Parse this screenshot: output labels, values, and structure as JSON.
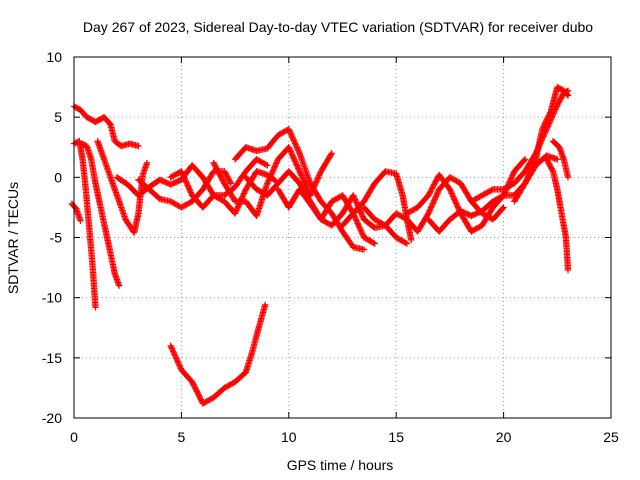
{
  "chart_data": {
    "type": "scatter",
    "title": "Day 267 of 2023, Sidereal Day-to-day VTEC variation (SDTVAR) for receiver dubo",
    "xlabel": "GPS time / hours",
    "ylabel": "SDTVAR / TECUs",
    "xlim": [
      0,
      25
    ],
    "ylim": [
      -20,
      10
    ],
    "xticks": [
      0,
      5,
      10,
      15,
      20,
      25
    ],
    "yticks": [
      -20,
      -15,
      -10,
      -5,
      0,
      5,
      10
    ],
    "xtick_labels": [
      "0",
      "5",
      "10",
      "15",
      "20",
      "25"
    ],
    "ytick_labels": [
      "-20",
      "-15",
      "-10",
      "-5",
      "0",
      "5",
      "10"
    ],
    "grid": true,
    "marker": "plus",
    "color": "#ff0000",
    "series": [
      {
        "name": "arc-1",
        "points": [
          [
            0.0,
            5.9
          ],
          [
            0.3,
            5.6
          ],
          [
            0.6,
            5.0
          ],
          [
            1.0,
            4.6
          ],
          [
            1.4,
            5.0
          ],
          [
            1.7,
            4.4
          ],
          [
            1.9,
            3.0
          ],
          [
            2.2,
            2.6
          ],
          [
            2.6,
            2.8
          ],
          [
            3.0,
            2.6
          ]
        ]
      },
      {
        "name": "arc-2",
        "points": [
          [
            0.0,
            2.8
          ],
          [
            0.25,
            3.0
          ],
          [
            0.4,
            1.5
          ],
          [
            0.55,
            -1.0
          ],
          [
            0.7,
            -4.0
          ],
          [
            0.85,
            -7.0
          ],
          [
            1.0,
            -10.8
          ]
        ]
      },
      {
        "name": "arc-3",
        "points": [
          [
            0.35,
            2.8
          ],
          [
            0.6,
            2.6
          ],
          [
            0.8,
            1.5
          ],
          [
            1.0,
            -0.5
          ],
          [
            1.3,
            -3.0
          ],
          [
            1.6,
            -5.5
          ],
          [
            1.9,
            -8.0
          ],
          [
            2.1,
            -9.0
          ]
        ]
      },
      {
        "name": "arc-4",
        "points": [
          [
            1.1,
            3.0
          ],
          [
            1.5,
            1.0
          ],
          [
            2.0,
            -1.5
          ],
          [
            2.4,
            -3.5
          ],
          [
            2.8,
            -4.6
          ],
          [
            3.0,
            -3.0
          ],
          [
            3.2,
            0.2
          ],
          [
            3.4,
            1.2
          ]
        ]
      },
      {
        "name": "arc-5",
        "points": [
          [
            -0.1,
            -2.2
          ],
          [
            0.1,
            -2.6
          ],
          [
            0.3,
            -3.6
          ]
        ]
      },
      {
        "name": "arc-6",
        "points": [
          [
            2.0,
            0.0
          ],
          [
            2.5,
            -0.6
          ],
          [
            3.0,
            -1.5
          ],
          [
            3.5,
            -0.8
          ],
          [
            4.0,
            -0.2
          ],
          [
            4.5,
            -0.6
          ],
          [
            5.0,
            -0.2
          ],
          [
            5.5,
            1.0
          ],
          [
            6.0,
            0.0
          ],
          [
            6.5,
            -1.5
          ],
          [
            7.0,
            -1.5
          ],
          [
            7.5,
            -0.8
          ],
          [
            8.0,
            0.5
          ],
          [
            8.5,
            1.5
          ],
          [
            9.0,
            1.0
          ]
        ]
      },
      {
        "name": "arc-7",
        "points": [
          [
            3.0,
            -0.2
          ],
          [
            3.5,
            -1.0
          ],
          [
            4.0,
            -1.8
          ],
          [
            4.5,
            -2.0
          ],
          [
            5.0,
            -2.5
          ],
          [
            5.5,
            -2.0
          ],
          [
            6.0,
            -1.0
          ],
          [
            6.5,
            0.5
          ],
          [
            7.0,
            0.5
          ],
          [
            7.3,
            -0.5
          ]
        ]
      },
      {
        "name": "arc-8",
        "points": [
          [
            4.5,
            0.0
          ],
          [
            5.0,
            0.5
          ],
          [
            5.5,
            -1.5
          ],
          [
            6.0,
            -2.5
          ],
          [
            6.5,
            -1.5
          ],
          [
            7.0,
            -2.0
          ],
          [
            7.5,
            -3.0
          ],
          [
            8.0,
            -1.0
          ],
          [
            8.5,
            0.5
          ],
          [
            9.0,
            0.2
          ],
          [
            9.4,
            -0.3
          ]
        ]
      },
      {
        "name": "arc-9",
        "points": [
          [
            6.5,
            1.2
          ],
          [
            7.0,
            -0.5
          ],
          [
            7.5,
            -2.0
          ],
          [
            8.0,
            -2.0
          ],
          [
            8.5,
            -3.2
          ],
          [
            9.0,
            -0.5
          ],
          [
            9.5,
            1.5
          ],
          [
            10.0,
            2.5
          ],
          [
            10.5,
            0.5
          ],
          [
            11.0,
            -1.5
          ],
          [
            11.5,
            0.5
          ],
          [
            12.0,
            2.0
          ]
        ]
      },
      {
        "name": "arc-10",
        "points": [
          [
            7.5,
            1.5
          ],
          [
            8.0,
            2.5
          ],
          [
            8.5,
            2.2
          ],
          [
            9.0,
            2.4
          ],
          [
            9.5,
            3.5
          ],
          [
            10.0,
            4.0
          ],
          [
            10.5,
            2.0
          ],
          [
            11.0,
            -0.5
          ],
          [
            11.5,
            -2.0
          ],
          [
            12.0,
            -3.0
          ],
          [
            12.5,
            -4.5
          ],
          [
            13.0,
            -5.8
          ],
          [
            13.5,
            -6.0
          ]
        ]
      },
      {
        "name": "arc-11",
        "points": [
          [
            8.0,
            0.0
          ],
          [
            8.5,
            -1.0
          ],
          [
            9.0,
            -1.5
          ],
          [
            9.5,
            -0.5
          ],
          [
            10.0,
            0.5
          ],
          [
            10.5,
            -0.5
          ],
          [
            11.0,
            -2.0
          ],
          [
            11.5,
            -3.5
          ],
          [
            12.0,
            -2.0
          ],
          [
            12.5,
            -1.5
          ],
          [
            13.0,
            -3.0
          ],
          [
            13.5,
            -5.0
          ],
          [
            14.0,
            -5.5
          ]
        ]
      },
      {
        "name": "arc-12",
        "points": [
          [
            9.5,
            -1.0
          ],
          [
            10.0,
            -2.5
          ],
          [
            10.5,
            -1.0
          ],
          [
            11.0,
            -2.2
          ],
          [
            11.5,
            -3.5
          ],
          [
            12.0,
            -4.0
          ],
          [
            12.5,
            -3.0
          ],
          [
            13.0,
            -1.5
          ],
          [
            13.5,
            -3.5
          ],
          [
            14.0,
            -4.2
          ],
          [
            14.5,
            -4.0
          ],
          [
            15.0,
            -5.0
          ],
          [
            15.5,
            -5.5
          ]
        ]
      },
      {
        "name": "arc-13",
        "points": [
          [
            12.5,
            -4.0
          ],
          [
            13.0,
            -3.0
          ],
          [
            13.5,
            -2.0
          ],
          [
            14.0,
            -0.5
          ],
          [
            14.5,
            0.5
          ],
          [
            15.0,
            0.3
          ],
          [
            15.3,
            -1.5
          ],
          [
            15.5,
            -3.5
          ],
          [
            15.7,
            -5.2
          ]
        ]
      },
      {
        "name": "arc-14",
        "points": [
          [
            13.5,
            -2.5
          ],
          [
            14.0,
            -3.5
          ],
          [
            14.5,
            -4.0
          ],
          [
            15.0,
            -3.0
          ],
          [
            15.5,
            -3.5
          ],
          [
            16.0,
            -4.5
          ],
          [
            16.5,
            -3.0
          ],
          [
            17.0,
            -1.0
          ],
          [
            17.5,
            0.0
          ],
          [
            18.0,
            -0.5
          ],
          [
            18.5,
            -2.0
          ],
          [
            19.0,
            -3.0
          ],
          [
            19.5,
            -3.5
          ],
          [
            20.0,
            -2.5
          ]
        ]
      },
      {
        "name": "arc-15",
        "points": [
          [
            15.5,
            -3.0
          ],
          [
            16.0,
            -2.5
          ],
          [
            16.5,
            -1.5
          ],
          [
            17.0,
            0.2
          ],
          [
            17.5,
            -1.0
          ],
          [
            18.0,
            -3.0
          ],
          [
            18.5,
            -4.5
          ],
          [
            19.0,
            -4.0
          ],
          [
            19.5,
            -2.5
          ],
          [
            20.0,
            -1.5
          ],
          [
            20.5,
            0.5
          ],
          [
            21.0,
            1.5
          ]
        ]
      },
      {
        "name": "arc-16",
        "points": [
          [
            16.5,
            -3.5
          ],
          [
            17.0,
            -4.5
          ],
          [
            17.5,
            -3.5
          ],
          [
            18.0,
            -2.8
          ],
          [
            18.5,
            -3.2
          ],
          [
            19.0,
            -2.8
          ],
          [
            19.5,
            -2.0
          ],
          [
            20.0,
            -1.5
          ],
          [
            20.5,
            -1.5
          ],
          [
            21.0,
            -0.5
          ],
          [
            21.5,
            1.0
          ],
          [
            22.0,
            1.8
          ],
          [
            22.5,
            1.5
          ]
        ]
      },
      {
        "name": "arc-17",
        "points": [
          [
            18.5,
            -2.0
          ],
          [
            19.0,
            -1.5
          ],
          [
            19.5,
            -1.0
          ],
          [
            20.0,
            -1.0
          ],
          [
            20.5,
            -0.5
          ],
          [
            21.0,
            0.5
          ],
          [
            21.5,
            2.0
          ],
          [
            22.0,
            4.0
          ],
          [
            22.5,
            6.0
          ],
          [
            22.8,
            7.0
          ],
          [
            23.0,
            7.2
          ]
        ]
      },
      {
        "name": "arc-18",
        "points": [
          [
            20.5,
            -2.0
          ],
          [
            21.0,
            -0.5
          ],
          [
            21.5,
            1.5
          ],
          [
            21.8,
            4.0
          ],
          [
            22.2,
            5.5
          ],
          [
            22.5,
            7.5
          ],
          [
            22.8,
            7.2
          ],
          [
            23.0,
            6.8
          ]
        ]
      },
      {
        "name": "arc-19",
        "points": [
          [
            22.0,
            1.5
          ],
          [
            22.3,
            0.5
          ],
          [
            22.5,
            -1.0
          ],
          [
            22.7,
            -3.0
          ],
          [
            22.9,
            -5.0
          ],
          [
            23.0,
            -7.7
          ]
        ]
      },
      {
        "name": "arc-20",
        "points": [
          [
            22.3,
            3.0
          ],
          [
            22.6,
            2.5
          ],
          [
            22.8,
            1.5
          ],
          [
            23.0,
            0.0
          ]
        ]
      },
      {
        "name": "arc-21",
        "points": [
          [
            4.5,
            -14.0
          ],
          [
            5.0,
            -16.0
          ],
          [
            5.5,
            -17.0
          ],
          [
            6.0,
            -18.8
          ],
          [
            6.5,
            -18.3
          ],
          [
            7.0,
            -17.5
          ],
          [
            7.5,
            -17.0
          ],
          [
            8.0,
            -16.2
          ],
          [
            8.3,
            -14.5
          ],
          [
            8.6,
            -12.5
          ],
          [
            8.9,
            -10.6
          ]
        ]
      }
    ]
  }
}
